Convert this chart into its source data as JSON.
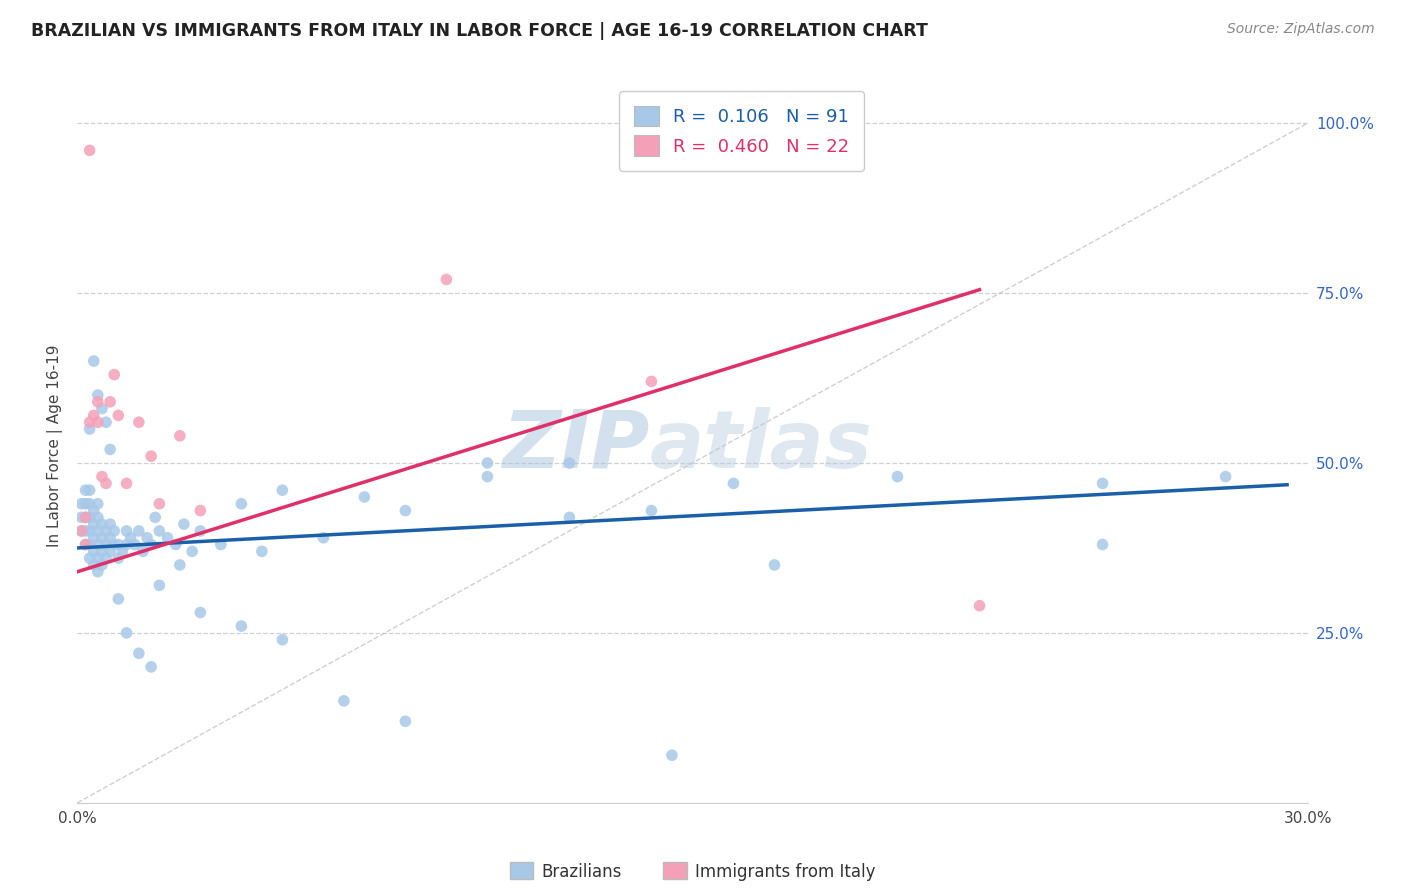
{
  "title": "BRAZILIAN VS IMMIGRANTS FROM ITALY IN LABOR FORCE | AGE 16-19 CORRELATION CHART",
  "source": "Source: ZipAtlas.com",
  "ylabel": "In Labor Force | Age 16-19",
  "xlim": [
    0.0,
    0.3
  ],
  "ylim": [
    0.0,
    1.05
  ],
  "yticks_right": [
    0.25,
    0.5,
    0.75,
    1.0
  ],
  "yticklabels_right": [
    "25.0%",
    "50.0%",
    "75.0%",
    "100.0%"
  ],
  "brazil_R": "0.106",
  "brazil_N": "91",
  "italy_R": "0.460",
  "italy_N": "22",
  "brazil_color": "#a8c8e8",
  "italy_color": "#f4a0b8",
  "brazil_line_color": "#1a5fa8",
  "italy_line_color": "#e03068",
  "ref_line_color": "#c0c0c0",
  "watermark": "ZIPatlas",
  "watermark_color": "#c0d4e8",
  "legend_label1": "Brazilians",
  "legend_label2": "Immigrants from Italy",
  "brazil_x": [
    0.001,
    0.001,
    0.001,
    0.002,
    0.002,
    0.002,
    0.002,
    0.002,
    0.003,
    0.003,
    0.003,
    0.003,
    0.003,
    0.003,
    0.004,
    0.004,
    0.004,
    0.004,
    0.004,
    0.005,
    0.005,
    0.005,
    0.005,
    0.005,
    0.005,
    0.006,
    0.006,
    0.006,
    0.006,
    0.007,
    0.007,
    0.007,
    0.008,
    0.008,
    0.008,
    0.009,
    0.009,
    0.01,
    0.01,
    0.011,
    0.012,
    0.012,
    0.013,
    0.014,
    0.015,
    0.016,
    0.017,
    0.018,
    0.019,
    0.02,
    0.022,
    0.024,
    0.026,
    0.028,
    0.03,
    0.035,
    0.04,
    0.045,
    0.05,
    0.06,
    0.07,
    0.08,
    0.1,
    0.12,
    0.14,
    0.16,
    0.2,
    0.25,
    0.28,
    0.003,
    0.004,
    0.005,
    0.006,
    0.007,
    0.008,
    0.01,
    0.012,
    0.015,
    0.018,
    0.02,
    0.025,
    0.03,
    0.04,
    0.05,
    0.065,
    0.08,
    0.1,
    0.12,
    0.145,
    0.17,
    0.25
  ],
  "brazil_y": [
    0.4,
    0.42,
    0.44,
    0.38,
    0.4,
    0.42,
    0.44,
    0.46,
    0.36,
    0.38,
    0.4,
    0.42,
    0.44,
    0.46,
    0.35,
    0.37,
    0.39,
    0.41,
    0.43,
    0.34,
    0.36,
    0.38,
    0.4,
    0.42,
    0.44,
    0.35,
    0.37,
    0.39,
    0.41,
    0.36,
    0.38,
    0.4,
    0.37,
    0.39,
    0.41,
    0.38,
    0.4,
    0.36,
    0.38,
    0.37,
    0.38,
    0.4,
    0.39,
    0.38,
    0.4,
    0.37,
    0.39,
    0.38,
    0.42,
    0.4,
    0.39,
    0.38,
    0.41,
    0.37,
    0.4,
    0.38,
    0.44,
    0.37,
    0.46,
    0.39,
    0.45,
    0.43,
    0.48,
    0.5,
    0.43,
    0.47,
    0.48,
    0.47,
    0.48,
    0.55,
    0.65,
    0.6,
    0.58,
    0.56,
    0.52,
    0.3,
    0.25,
    0.22,
    0.2,
    0.32,
    0.35,
    0.28,
    0.26,
    0.24,
    0.15,
    0.12,
    0.5,
    0.42,
    0.07,
    0.35,
    0.38
  ],
  "italy_x": [
    0.001,
    0.002,
    0.002,
    0.003,
    0.003,
    0.004,
    0.005,
    0.005,
    0.006,
    0.007,
    0.008,
    0.009,
    0.01,
    0.012,
    0.015,
    0.018,
    0.02,
    0.025,
    0.03,
    0.09,
    0.14,
    0.22
  ],
  "italy_y": [
    0.4,
    0.38,
    0.42,
    0.96,
    0.56,
    0.57,
    0.56,
    0.59,
    0.48,
    0.47,
    0.59,
    0.63,
    0.57,
    0.47,
    0.56,
    0.51,
    0.44,
    0.54,
    0.43,
    0.77,
    0.62,
    0.29
  ],
  "brazil_trend_x": [
    0.0,
    0.295
  ],
  "brazil_trend_y": [
    0.375,
    0.468
  ],
  "italy_trend_x": [
    0.0,
    0.22
  ],
  "italy_trend_y": [
    0.34,
    0.755
  ],
  "ref_line_x": [
    0.0,
    0.3
  ],
  "ref_line_y": [
    0.0,
    1.0
  ]
}
